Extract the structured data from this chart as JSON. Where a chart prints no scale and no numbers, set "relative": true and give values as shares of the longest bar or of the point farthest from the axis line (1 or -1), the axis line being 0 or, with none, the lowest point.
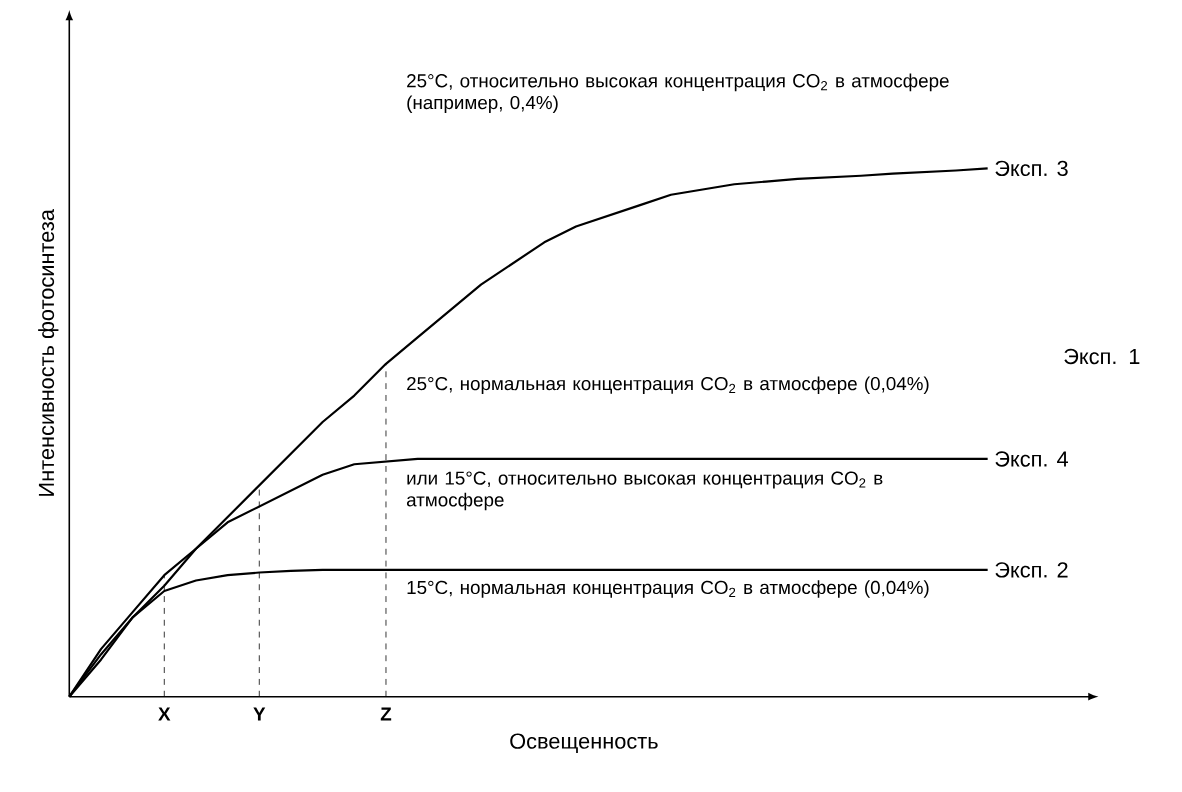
{
  "chart_data": {
    "type": "line",
    "relative": true,
    "xlabel": "Освещенность",
    "ylabel": "Интенсивность фотосинтеза",
    "categories": [
      null,
      null,
      null,
      "X",
      null,
      null,
      "Y",
      null,
      null,
      null,
      "Z",
      null,
      null,
      null,
      null,
      null,
      null,
      null,
      null,
      null,
      null,
      null,
      null,
      null,
      null,
      null,
      null,
      null,
      null,
      null,
      null,
      null,
      null
    ],
    "series": [
      {
        "name": "Эксп. 3",
        "color": "#000000",
        "values": [
          0,
          0.07,
          0.15,
          0.21,
          0.28,
          0.34,
          0.4,
          0.46,
          0.52,
          0.57,
          0.63,
          0.68,
          0.73,
          0.78,
          0.82,
          0.86,
          0.89,
          0.91,
          0.93,
          0.95,
          0.96,
          0.97,
          0.975,
          0.98,
          0.983,
          0.986,
          0.99,
          0.993,
          0.996,
          1,
          null,
          null,
          null
        ]
      },
      {
        "name": "Эксп. 4",
        "color": "#000000",
        "values": [
          0,
          0.09,
          0.16,
          0.23,
          0.28,
          0.33,
          0.36,
          0.39,
          0.42,
          0.44,
          0.445,
          0.45,
          0.45,
          0.45,
          0.45,
          0.45,
          0.45,
          0.45,
          0.45,
          0.45,
          0.45,
          0.45,
          0.45,
          0.45,
          0.45,
          0.45,
          0.45,
          0.45,
          0.45,
          0.45,
          null,
          null,
          null
        ]
      },
      {
        "name": "Эксп. 2",
        "color": "#000000",
        "values": [
          0,
          0.08,
          0.15,
          0.2,
          0.22,
          0.23,
          0.235,
          0.238,
          0.24,
          0.24,
          0.24,
          0.24,
          0.24,
          0.24,
          0.24,
          0.24,
          0.24,
          0.24,
          0.24,
          0.24,
          0.24,
          0.24,
          0.24,
          0.24,
          0.24,
          0.24,
          0.24,
          0.24,
          0.24,
          0.24,
          null,
          null,
          null
        ]
      }
    ],
    "ref_lines": [
      {
        "axis": "x",
        "value": "X",
        "line_style": "dashed"
      },
      {
        "axis": "x",
        "value": "Y",
        "line_style": "dashed"
      },
      {
        "axis": "x",
        "value": "Z",
        "line_style": "dashed"
      }
    ],
    "annotations": [
      "25°C, относительно высокая концентрация CO$_{2}$ в атмосфере (например, 0,4%)",
      "Эксп. 1",
      "25°C, нормальная концентрация CO$_{2}$ в атмосфере (0,04%)",
      "или 15°C, относительно высокая концентрация CO$_{2}$ в атмосфере",
      "15°C, нормальная концентрация CO$_{2}$ в атмосфере (0,04%)"
    ],
    "marker": "none",
    "line_style": "solid",
    "grid": false
  }
}
